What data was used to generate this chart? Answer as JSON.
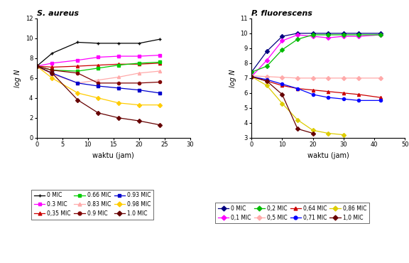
{
  "s_aureus": {
    "title": "S. aureus",
    "xlabel": "waktu (jam)",
    "ylabel": "log N",
    "xlim": [
      0,
      30
    ],
    "ylim": [
      0,
      12
    ],
    "xticks": [
      0,
      5,
      10,
      15,
      20,
      25,
      30
    ],
    "yticks": [
      0,
      2,
      4,
      6,
      8,
      10,
      12
    ],
    "series": [
      {
        "label": "0 MIC",
        "color": "#000000",
        "marker": "+",
        "x": [
          0,
          3,
          8,
          12,
          16,
          20,
          24
        ],
        "y": [
          7.2,
          8.5,
          9.6,
          9.5,
          9.5,
          9.5,
          9.9
        ]
      },
      {
        "label": "0.3 MIC",
        "color": "#ff00ff",
        "marker": "s",
        "x": [
          0,
          3,
          8,
          12,
          16,
          20,
          24
        ],
        "y": [
          7.2,
          7.5,
          7.8,
          8.1,
          8.2,
          8.2,
          8.3
        ]
      },
      {
        "label": "0,35 MIC",
        "color": "#cc0000",
        "marker": "^",
        "x": [
          0,
          3,
          8,
          12,
          16,
          20,
          24
        ],
        "y": [
          7.2,
          7.1,
          7.2,
          7.3,
          7.4,
          7.4,
          7.5
        ]
      },
      {
        "label": "0.66 MIC",
        "color": "#00cc00",
        "marker": "s",
        "x": [
          0,
          3,
          8,
          12,
          16,
          20,
          24
        ],
        "y": [
          7.2,
          6.8,
          6.7,
          7.0,
          7.3,
          7.5,
          7.6
        ]
      },
      {
        "label": "0.83 MIC",
        "color": "#ffaaaa",
        "marker": "^",
        "linestyle": "-",
        "x": [
          0,
          3,
          8,
          12,
          16,
          20,
          24
        ],
        "y": [
          7.2,
          6.4,
          5.5,
          5.8,
          6.1,
          6.5,
          6.7
        ]
      },
      {
        "label": "0.9 MIC",
        "color": "#800000",
        "marker": "o",
        "x": [
          0,
          3,
          8,
          12,
          16,
          20,
          24
        ],
        "y": [
          7.2,
          6.8,
          6.5,
          5.5,
          5.5,
          5.5,
          5.6
        ]
      },
      {
        "label": "0.93 MIC",
        "color": "#0000cc",
        "marker": "s",
        "x": [
          0,
          3,
          8,
          12,
          16,
          20,
          24
        ],
        "y": [
          7.2,
          6.5,
          5.5,
          5.2,
          5.0,
          4.8,
          4.5
        ]
      },
      {
        "label": "0.98 MIC",
        "color": "#ffcc00",
        "marker": "D",
        "x": [
          0,
          3,
          8,
          12,
          16,
          20,
          24
        ],
        "y": [
          7.2,
          6.0,
          4.5,
          4.0,
          3.5,
          3.3,
          3.3
        ]
      },
      {
        "label": "1.0 MIC",
        "color": "#660000",
        "marker": "D",
        "x": [
          0,
          3,
          8,
          12,
          16,
          20,
          24
        ],
        "y": [
          7.2,
          6.5,
          3.8,
          2.5,
          2.0,
          1.7,
          1.3
        ]
      }
    ]
  },
  "p_fluorescens": {
    "title": "P. fluorescens",
    "xlabel": "waktu (jam)",
    "ylabel": "log N",
    "xlim": [
      0,
      50
    ],
    "ylim": [
      3,
      11
    ],
    "xticks": [
      0,
      10,
      20,
      30,
      40,
      50
    ],
    "yticks": [
      3,
      4,
      5,
      6,
      7,
      8,
      9,
      10,
      11
    ],
    "series": [
      {
        "label": "0 MIC",
        "color": "#000080",
        "marker": "D",
        "x": [
          0,
          5,
          10,
          15,
          20,
          25,
          30,
          35,
          42
        ],
        "y": [
          7.4,
          8.8,
          9.8,
          10.0,
          10.0,
          10.0,
          10.0,
          10.0,
          10.0
        ]
      },
      {
        "label": "0,1 MIC",
        "color": "#ff00ff",
        "marker": "D",
        "x": [
          0,
          5,
          10,
          15,
          20,
          25,
          30,
          35,
          42
        ],
        "y": [
          7.1,
          8.2,
          9.5,
          9.9,
          9.8,
          9.7,
          9.8,
          9.8,
          9.9
        ]
      },
      {
        "label": "0,2 MIC",
        "color": "#00bb00",
        "marker": "D",
        "x": [
          0,
          5,
          10,
          15,
          20,
          25,
          30,
          35,
          42
        ],
        "y": [
          7.4,
          7.8,
          8.9,
          9.6,
          9.9,
          9.9,
          9.9,
          9.9,
          9.9
        ]
      },
      {
        "label": "0,5 MIC",
        "color": "#ffaaaa",
        "marker": "D",
        "x": [
          0,
          5,
          10,
          15,
          20,
          25,
          30,
          35,
          42
        ],
        "y": [
          7.15,
          7.1,
          7.05,
          7.0,
          7.0,
          7.0,
          7.0,
          7.0,
          7.0
        ]
      },
      {
        "label": "0,64 MIC",
        "color": "#cc0000",
        "marker": "^",
        "x": [
          0,
          5,
          10,
          15,
          20,
          25,
          30,
          35,
          42
        ],
        "y": [
          7.1,
          6.8,
          6.5,
          6.3,
          6.2,
          6.1,
          6.0,
          5.9,
          5.7
        ]
      },
      {
        "label": "0,71 MIC",
        "color": "#0000ff",
        "marker": "o",
        "x": [
          0,
          5,
          10,
          15,
          20,
          25,
          30,
          35,
          42
        ],
        "y": [
          7.1,
          6.9,
          6.6,
          6.3,
          5.9,
          5.7,
          5.6,
          5.5,
          5.5
        ]
      },
      {
        "label": "0,86 MIC",
        "color": "#ddcc00",
        "marker": "D",
        "x": [
          0,
          5,
          10,
          15,
          20,
          25,
          30
        ],
        "y": [
          7.1,
          6.5,
          5.3,
          4.2,
          3.5,
          3.3,
          3.2
        ]
      },
      {
        "label": "1,0 MIC",
        "color": "#660000",
        "marker": "D",
        "x": [
          0,
          5,
          10,
          15,
          20
        ],
        "y": [
          7.1,
          6.8,
          5.9,
          3.6,
          3.3
        ]
      }
    ]
  },
  "legend_s_aureus": [
    {
      "label": "0 MIC",
      "color": "#000000",
      "marker": "+"
    },
    {
      "label": "0.3 MIC",
      "color": "#ff00ff",
      "marker": "s"
    },
    {
      "label": "0,35 MIC",
      "color": "#cc0000",
      "marker": "^"
    },
    {
      "label": "0.66 MIC",
      "color": "#00cc00",
      "marker": "s"
    },
    {
      "label": "0.83 MIC",
      "color": "#ffaaaa",
      "marker": "^"
    },
    {
      "label": "0.9 MIC",
      "color": "#800000",
      "marker": "o"
    },
    {
      "label": "0.93 MIC",
      "color": "#0000cc",
      "marker": "s"
    },
    {
      "label": "0.98 MIC",
      "color": "#ffcc00",
      "marker": "D"
    },
    {
      "label": "1.0 MIC",
      "color": "#660000",
      "marker": "D"
    }
  ],
  "legend_p_fluorescens": [
    {
      "label": "0 MIC",
      "color": "#000080",
      "marker": "D"
    },
    {
      "label": "0,1 MIC",
      "color": "#ff00ff",
      "marker": "D"
    },
    {
      "label": "0,2 MIC",
      "color": "#00bb00",
      "marker": "D"
    },
    {
      "label": "0,5 MIC",
      "color": "#ffaaaa",
      "marker": "D"
    },
    {
      "label": "0,64 MIC",
      "color": "#cc0000",
      "marker": "^"
    },
    {
      "label": "0,71 MIC",
      "color": "#0000ff",
      "marker": "o"
    },
    {
      "label": "0,86 MIC",
      "color": "#ddcc00",
      "marker": "D"
    },
    {
      "label": "1,0 MIC",
      "color": "#660000",
      "marker": "D"
    }
  ],
  "bg_color": "#f0f0f0"
}
